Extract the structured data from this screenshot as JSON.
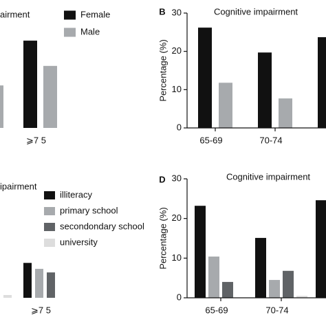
{
  "chart_data": [
    {
      "type": "bar",
      "title": "airment",
      "categories": [
        null,
        "⩾7 5"
      ],
      "series": [
        {
          "name": "Female",
          "color": "#111111",
          "values": [
            null,
            22.8
          ]
        },
        {
          "name": "Male",
          "color": "#a7aaad",
          "values": [
            11.1,
            16.2
          ]
        }
      ],
      "ylim": [
        0,
        30
      ]
    },
    {
      "type": "bar",
      "panel_label": "B",
      "title": "Cognitive impairment",
      "y_label": "Percentage (%)",
      "categories": [
        "65-69",
        "70-74",
        null
      ],
      "series": [
        {
          "color": "#111111",
          "values": [
            26.2,
            19.7,
            23.7
          ]
        },
        {
          "color": "#a7aaad",
          "values": [
            11.8,
            7.7,
            null
          ]
        }
      ],
      "ylim": [
        0,
        30
      ],
      "yticks": [
        0,
        10,
        20,
        30
      ]
    },
    {
      "type": "bar",
      "title": "ipairment",
      "categories": [
        null,
        "⩾7 5"
      ],
      "series": [
        {
          "name": "illiteracy",
          "color": "#111111",
          "values": [
            null,
            8.8
          ]
        },
        {
          "name": "primary school",
          "color": "#a7aaad",
          "values": [
            null,
            7.3
          ]
        },
        {
          "name": "secondondary school",
          "color": "#606366",
          "values": [
            null,
            6.4
          ]
        },
        {
          "name": "university",
          "color": "#dddddd",
          "values": [
            0.7,
            null
          ]
        }
      ],
      "ylim": [
        0,
        30
      ]
    },
    {
      "type": "bar",
      "panel_label": "D",
      "title": "Cognitive impairment",
      "y_label": "Percentage (%)",
      "categories": [
        "65-69",
        "70-74",
        null
      ],
      "series": [
        {
          "color": "#111111",
          "values": [
            23.2,
            15.1,
            24.6
          ]
        },
        {
          "color": "#a7aaad",
          "values": [
            10.4,
            4.5,
            null
          ]
        },
        {
          "color": "#606366",
          "values": [
            4.0,
            6.8,
            null
          ]
        },
        {
          "color": "#dddddd",
          "values": [
            null,
            0.5,
            null
          ]
        }
      ],
      "ylim": [
        0,
        30
      ],
      "yticks": [
        0,
        10,
        20,
        30
      ]
    }
  ]
}
